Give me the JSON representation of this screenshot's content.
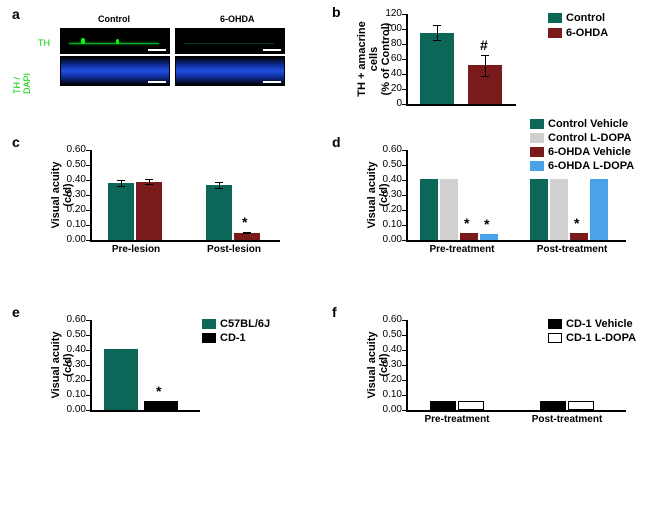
{
  "panel_a": {
    "label": "a",
    "micrographs": {
      "col_labels": [
        "Control",
        "6-OHDA"
      ],
      "row_labels": [
        "TH",
        "TH / DAPI"
      ],
      "row_label_color": "#00ff00",
      "top_bg": "#000000",
      "bottom_bg": "#1a3a8a",
      "th_signal_color": "#00ff00",
      "dapi_color": "#3060ff"
    }
  },
  "panel_b": {
    "label": "b",
    "type": "bar",
    "ylabel": "TH + amacrine cells\n(% of Control)",
    "ylim": [
      0,
      120
    ],
    "ytick_step": 20,
    "categories": [
      "Control",
      "6-OHDA"
    ],
    "values": [
      95,
      52
    ],
    "errors": [
      10,
      14
    ],
    "colors": [
      "#0d6759",
      "#7b1a1a"
    ],
    "sig_marks": [
      "",
      "#"
    ],
    "legend": [
      {
        "label": "Control",
        "color": "#0d6759"
      },
      {
        "label": "6-OHDA",
        "color": "#7b1a1a"
      }
    ]
  },
  "panel_c": {
    "label": "c",
    "type": "bar",
    "ylabel": "Visual acuity (c/d)",
    "ylim": [
      0,
      0.6
    ],
    "ytick_step": 0.1,
    "groups": [
      "Pre-lesion",
      "Post-lesion"
    ],
    "series": [
      {
        "label": "Control",
        "color": "#0d6759",
        "values": [
          0.38,
          0.37
        ],
        "errors": [
          0.02,
          0.02
        ]
      },
      {
        "label": "6-OHDA",
        "color": "#7b1a1a",
        "values": [
          0.39,
          0.05
        ],
        "errors": [
          0.015,
          0.005
        ]
      }
    ],
    "sig_marks": [
      [
        "",
        ""
      ],
      [
        "",
        "*"
      ]
    ]
  },
  "panel_d": {
    "label": "d",
    "type": "bar",
    "ylabel": "Visual acuity (c/d)",
    "ylim": [
      0,
      0.6
    ],
    "ytick_step": 0.1,
    "groups": [
      "Pre-treatment",
      "Post-treatment"
    ],
    "series": [
      {
        "label": "Control Vehicle",
        "color": "#0d6759",
        "values": [
          0.41,
          0.41
        ]
      },
      {
        "label": "Control L-DOPA",
        "color": "#d0d0d0",
        "values": [
          0.41,
          0.41
        ]
      },
      {
        "label": "6-OHDA Vehicle",
        "color": "#7b1a1a",
        "values": [
          0.05,
          0.05
        ]
      },
      {
        "label": "6-OHDA L-DOPA",
        "color": "#4aa3e8",
        "values": [
          0.04,
          0.41
        ]
      }
    ],
    "sig_marks": [
      [
        "",
        "",
        "*",
        "*"
      ],
      [
        "",
        "",
        "*",
        ""
      ]
    ],
    "legend": [
      {
        "label": "Control Vehicle",
        "color": "#0d6759"
      },
      {
        "label": "Control L-DOPA",
        "color": "#d0d0d0"
      },
      {
        "label": "6-OHDA Vehicle",
        "color": "#7b1a1a"
      },
      {
        "label": "6-OHDA L-DOPA",
        "color": "#4aa3e8"
      }
    ]
  },
  "panel_e": {
    "label": "e",
    "type": "bar",
    "ylabel": "Visual acuity (c/d)",
    "ylim": [
      0,
      0.6
    ],
    "ytick_step": 0.1,
    "categories": [
      "C57BL/6J",
      "CD-1"
    ],
    "values": [
      0.41,
      0.06
    ],
    "colors": [
      "#0d6759",
      "#000000"
    ],
    "sig_marks": [
      "",
      "*"
    ],
    "legend": [
      {
        "label": "C57BL/6J",
        "color": "#0d6759"
      },
      {
        "label": "CD-1",
        "color": "#000000"
      }
    ]
  },
  "panel_f": {
    "label": "f",
    "type": "bar",
    "ylabel": "Visual acuity (c/d)",
    "ylim": [
      0,
      0.6
    ],
    "ytick_step": 0.1,
    "groups": [
      "Pre-treatment",
      "Post-treatment"
    ],
    "series": [
      {
        "label": "CD-1 Vehicle",
        "color": "#000000",
        "values": [
          0.06,
          0.06
        ]
      },
      {
        "label": "CD-1 L-DOPA",
        "color": "#ffffff",
        "border": "#000000",
        "values": [
          0.06,
          0.06
        ]
      }
    ],
    "legend": [
      {
        "label": "CD-1 Vehicle",
        "color": "#000000"
      },
      {
        "label": "CD-1 L-DOPA",
        "color": "#ffffff",
        "border": "#000000"
      }
    ]
  }
}
